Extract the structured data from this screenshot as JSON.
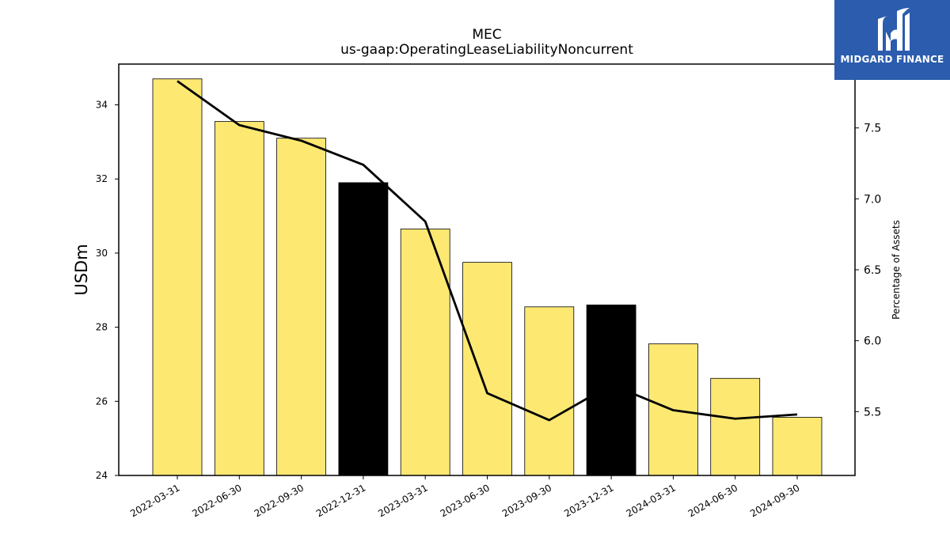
{
  "chart_data": {
    "type": "bar",
    "title": "MEC",
    "subtitle": "us-gaap:OperatingLeaseLiabilityNoncurrent",
    "ylabel": "USDm",
    "y2label": "Percentage of Assets",
    "categories": [
      "2022-03-31",
      "2022-06-30",
      "2022-09-30",
      "2022-12-31",
      "2023-03-31",
      "2023-06-30",
      "2023-09-30",
      "2023-12-31",
      "2024-03-31",
      "2024-06-30",
      "2024-09-30"
    ],
    "values": [
      34.7,
      33.55,
      33.1,
      31.9,
      30.65,
      29.75,
      28.55,
      28.6,
      27.55,
      26.62,
      25.57
    ],
    "bar_colors": [
      "#fde872",
      "#fde872",
      "#fde872",
      "#000000",
      "#fde872",
      "#fde872",
      "#fde872",
      "#000000",
      "#fde872",
      "#fde872",
      "#fde872"
    ],
    "series": [
      {
        "type": "line",
        "axis": "right",
        "values": [
          7.83,
          7.52,
          7.41,
          7.24,
          6.84,
          5.63,
          5.44,
          5.69,
          5.51,
          5.45,
          5.48
        ]
      }
    ],
    "ylim": [
      24,
      35.1
    ],
    "y2lim": [
      5.05,
      7.95
    ],
    "yticks": [
      24,
      26,
      28,
      30,
      32,
      34
    ],
    "y2ticks": [
      "5.5",
      "6.0",
      "6.5",
      "7.0",
      "7.5"
    ],
    "grid": false
  },
  "logo": {
    "text": "MIDGARD FINANCE",
    "background": "#2b5cad"
  }
}
